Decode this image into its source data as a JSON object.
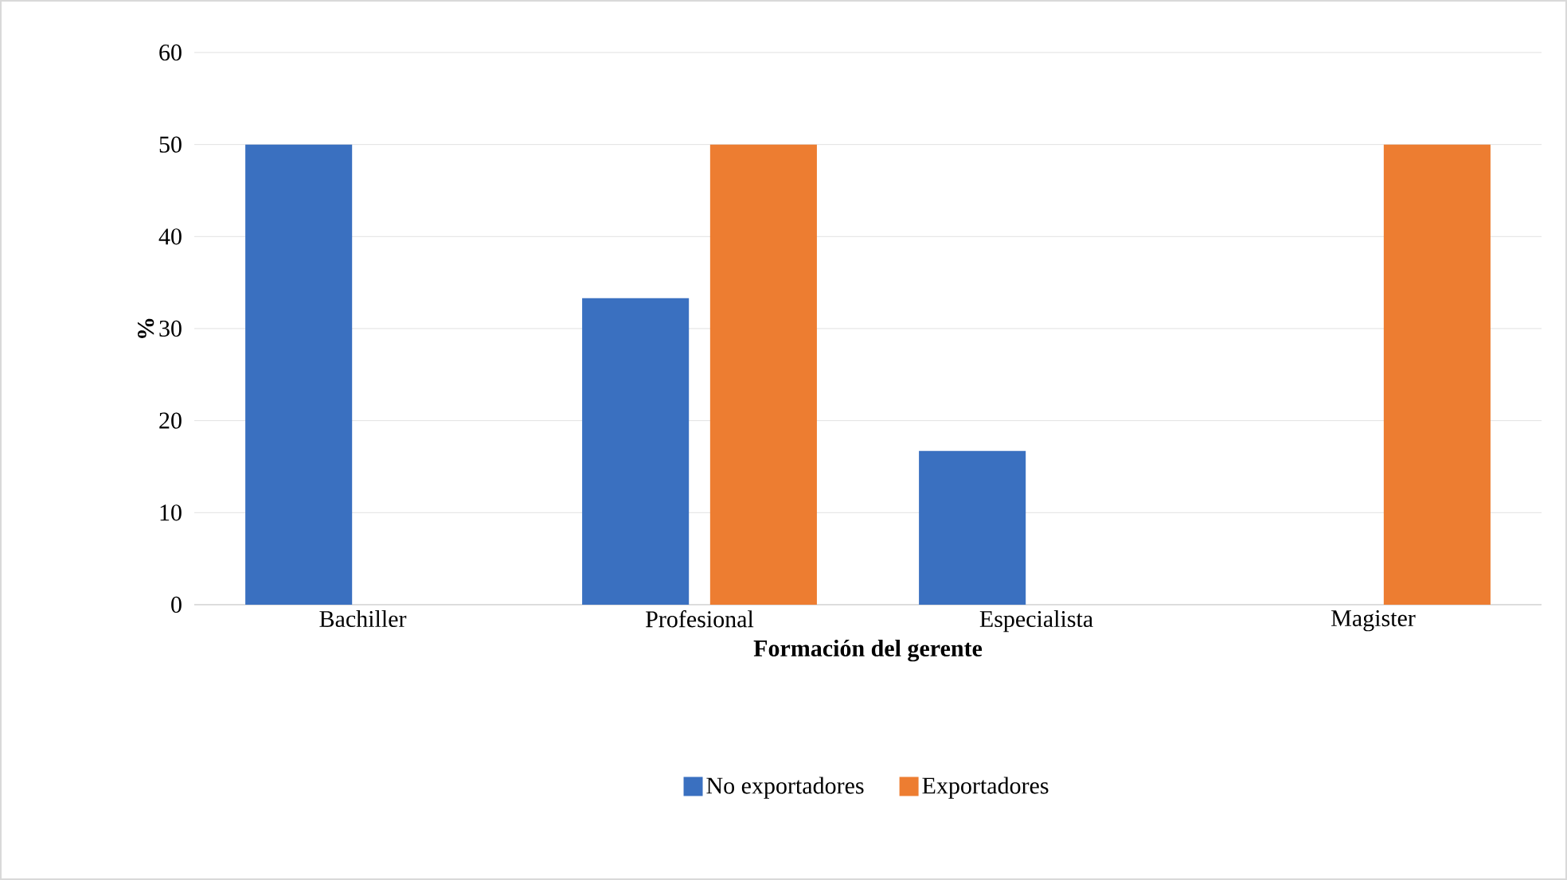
{
  "chart_data": {
    "type": "bar",
    "xlabel": "Formación del gerente",
    "ylabel": "%",
    "categories": [
      "Bachiller",
      "Profesional",
      "Especialista",
      "Magister"
    ],
    "series": [
      {
        "name": "No exportadores",
        "color": "#3a70c0",
        "values": [
          50,
          33.3,
          16.7,
          0
        ]
      },
      {
        "name": "Exportadores",
        "color": "#ed7d31",
        "values": [
          0,
          50,
          0,
          50
        ]
      }
    ],
    "ylim": [
      0,
      60
    ],
    "yticks": [
      0,
      10,
      20,
      30,
      40,
      50,
      60
    ],
    "grid": "y",
    "legend": "bottom"
  }
}
